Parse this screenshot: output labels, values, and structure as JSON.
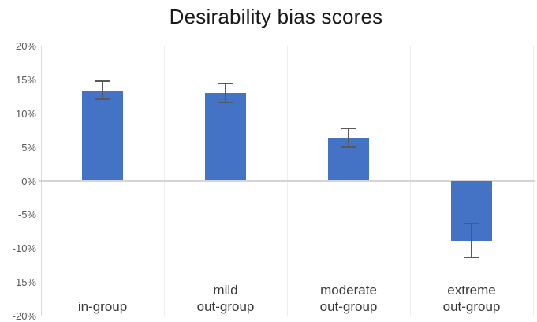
{
  "chart_data": {
    "type": "bar",
    "title": "Desirability bias scores",
    "categories": [
      "in-group",
      "mild\nout-group",
      "moderate\nout-group",
      "extreme\nout-group"
    ],
    "values": [
      13.4,
      13.0,
      6.4,
      -8.9
    ],
    "error_bars": [
      1.3,
      1.4,
      1.4,
      2.5
    ],
    "y_ticks": [
      20,
      15,
      10,
      5,
      0,
      -5,
      -10,
      -15,
      -20
    ],
    "y_tick_labels": [
      "20%",
      "15%",
      "10%",
      "5%",
      "0%",
      "-5%",
      "-10%",
      "-15%",
      "-20%"
    ],
    "ylim": [
      -20,
      20
    ],
    "xlabel": "",
    "ylabel": "",
    "grid": "vertical-only, two minor intervals per category",
    "legend": "none"
  },
  "colors": {
    "bar": "#4472C4",
    "error_bar": "#595959",
    "gridline": "#EDEDED",
    "axis_line": "#D9D9D9",
    "zero_line": "#D4D4D4",
    "tick_label": "#595959",
    "category_label": "#3a3a3a",
    "title": "#1a1a1a",
    "background": "#ffffff"
  }
}
